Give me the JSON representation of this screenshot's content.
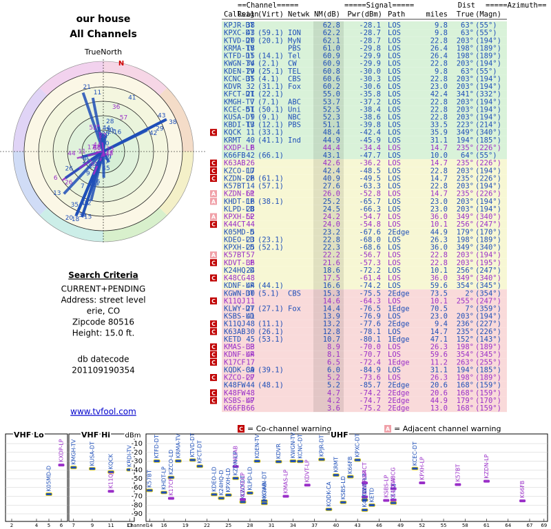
{
  "header": {
    "title": "our house",
    "subtitle": "All Channels"
  },
  "polar": {
    "north_label": "TrueNorth",
    "north": "N"
  },
  "criteria": {
    "heading": "Search Criteria",
    "lines": [
      "CURRENT+PENDING",
      "Address: street level",
      "erie, CO",
      "Zipcode 80516",
      "Height: 15.0 ft."
    ],
    "datecode_label": "db datecode",
    "datecode": "201109190354",
    "link": "www.tvfool.com"
  },
  "table": {
    "header1": [
      "==Channel=====",
      "=====Signal=====",
      "Dist",
      "=====Azimuth=="
    ],
    "header2": [
      "Callsign",
      "Real",
      "(Virt)",
      "Netwk",
      "NM(dB)",
      "Pwr(dBm)",
      "Path",
      "miles",
      "True",
      "(Magn)"
    ],
    "rows": [
      {
        "cs": "KPJR-DT",
        "r": "38",
        "nm": "62.8",
        "pw": "-28.1",
        "pa": "LOS",
        "d": "9.8",
        "t": "63°",
        "m": "(55°)",
        "c": "#1f4fb8",
        "bg": "#d9f2d9"
      },
      {
        "cs": "KPXC-DT",
        "r": "43",
        "v": "(59.1)",
        "n": "ION",
        "nm": "62.2",
        "pw": "-28.7",
        "pa": "LOS",
        "d": "9.8",
        "t": "63°",
        "m": "(55°)",
        "c": "#1f4fb8",
        "bg": "#d9f2d9"
      },
      {
        "cs": "KTVD-DT",
        "r": "20",
        "v": "(20.1)",
        "n": "MyN",
        "nm": "62.1",
        "pw": "-28.7",
        "pa": "LOS",
        "d": "22.8",
        "t": "203°",
        "m": "(194°)",
        "c": "#1f4fb8",
        "bg": "#d9f2d9"
      },
      {
        "cs": "KRMA-TV",
        "r": "18",
        "n": "PBS",
        "nm": "61.0",
        "pw": "-29.8",
        "pa": "LOS",
        "d": "26.4",
        "t": "198°",
        "m": "(189°)",
        "c": "#1f4fb8",
        "bg": "#d9f2d9"
      },
      {
        "cs": "KTFD-DT",
        "r": "15",
        "v": "(14.1)",
        "n": "Tel",
        "nm": "60.9",
        "pw": "-29.9",
        "pa": "LOS",
        "d": "26.4",
        "t": "198°",
        "m": "(189°)",
        "c": "#1f4fb8",
        "bg": "#d9f2d9"
      },
      {
        "cs": "KWGN-TV",
        "r": "34",
        "v": "(2.1)",
        "n": "CW",
        "nm": "60.9",
        "pw": "-29.9",
        "pa": "LOS",
        "d": "22.8",
        "t": "203°",
        "m": "(194°)",
        "c": "#1f4fb8",
        "bg": "#d9f2d9"
      },
      {
        "cs": "KDEN-TV",
        "r": "29",
        "v": "(25.1)",
        "n": "TEL",
        "nm": "60.8",
        "pw": "-30.0",
        "pa": "LOS",
        "d": "9.8",
        "t": "63°",
        "m": "(55°)",
        "c": "#1f4fb8",
        "bg": "#d9f2d9"
      },
      {
        "cs": "KCNC-DT",
        "r": "35",
        "v": "(4.1)",
        "n": "CBS",
        "nm": "60.6",
        "pw": "-30.3",
        "pa": "LOS",
        "d": "22.8",
        "t": "203°",
        "m": "(194°)",
        "c": "#1f4fb8",
        "bg": "#d9f2d9"
      },
      {
        "cs": "KDVR",
        "r": "32",
        "v": "(31.1)",
        "n": "Fox",
        "nm": "60.2",
        "pw": "-30.6",
        "pa": "LOS",
        "d": "23.0",
        "t": "203°",
        "m": "(194°)",
        "c": "#1f4fb8",
        "bg": "#d9f2d9"
      },
      {
        "cs": "KFCT-DT",
        "r": "21",
        "v": "(22.1)",
        "nm": "55.0",
        "pw": "-35.8",
        "pa": "LOS",
        "d": "42.4",
        "t": "341°",
        "m": "(332°)",
        "c": "#1f4fb8",
        "bg": "#d9f2d9"
      },
      {
        "cs": "KMGH-TV",
        "r": "7",
        "v": "(7.1)",
        "n": "ABC",
        "nm": "53.7",
        "pw": "-37.2",
        "pa": "LOS",
        "d": "22.8",
        "t": "203°",
        "m": "(194°)",
        "c": "#1f4fb8",
        "bg": "#d9f2d9"
      },
      {
        "cs": "KCEC-DT",
        "r": "51",
        "v": "(50.1)",
        "n": "Uni",
        "nm": "52.5",
        "pw": "-38.4",
        "pa": "LOS",
        "d": "22.8",
        "t": "203°",
        "m": "(194°)",
        "c": "#1f4fb8",
        "bg": "#d9f2d9"
      },
      {
        "cs": "KUSA-DT",
        "r": "9",
        "v": "(9.1)",
        "n": "NBC",
        "nm": "52.3",
        "pw": "-38.6",
        "pa": "LOS",
        "d": "22.8",
        "t": "203°",
        "m": "(194°)",
        "c": "#1f4fb8",
        "bg": "#d9f2d9"
      },
      {
        "cs": "KBDI-TV",
        "r": "13",
        "v": "(12.1)",
        "n": "PBS",
        "nm": "51.1",
        "pw": "-39.8",
        "pa": "LOS",
        "d": "33.5",
        "t": "223°",
        "m": "(214°)",
        "c": "#1f4fb8",
        "bg": "#d9f2d9"
      },
      {
        "w": "C",
        "cs": "KQCK",
        "r": "11",
        "v": "(33.1)",
        "nm": "48.4",
        "pw": "-42.4",
        "pa": "LOS",
        "d": "35.9",
        "t": "349°",
        "m": "(340°)",
        "c": "#1f4fb8",
        "bg": "#d9f2d9"
      },
      {
        "cs": "KRMT",
        "r": "40",
        "v": "(41.1)",
        "n": "Ind",
        "nm": "44.9",
        "pw": "-45.9",
        "pa": "LOS",
        "d": "31.1",
        "t": "194°",
        "m": "(185°)",
        "c": "#1f4fb8",
        "bg": "#d9f2d9"
      },
      {
        "cs": "KXDP-LP",
        "r": "6",
        "nm": "44.4",
        "pw": "-34.4",
        "pa": "LOS",
        "d": "14.7",
        "t": "235°",
        "m": "(226°)",
        "c": "#9a2fc8",
        "bg": "#d9f2d9"
      },
      {
        "cs": "K66FB",
        "r": "42",
        "v": "(66.1)",
        "nm": "43.1",
        "pw": "-47.7",
        "pa": "LOS",
        "d": "10.0",
        "t": "64°",
        "m": "(55°)",
        "c": "#1f4fb8",
        "bg": "#d9f2d9"
      },
      {
        "w": "C",
        "cs": "K63AB",
        "r": "26",
        "nm": "42.6",
        "pw": "-36.2",
        "pa": "LOS",
        "d": "14.7",
        "t": "235°",
        "m": "(226°)",
        "c": "#9a2fc8",
        "bg": "#f7f7d4"
      },
      {
        "w": "C",
        "cs": "KZCO-LD",
        "r": "17",
        "nm": "42.4",
        "pw": "-48.5",
        "pa": "LOS",
        "d": "22.8",
        "t": "203°",
        "m": "(194°)",
        "c": "#1f4fb8",
        "bg": "#f7f7d4"
      },
      {
        "w": "C",
        "cs": "KZDN-LP",
        "r": "26",
        "v": "(61.1)",
        "nm": "40.9",
        "pw": "-49.5",
        "pa": "LOS",
        "d": "14.7",
        "t": "235°",
        "m": "(226°)",
        "c": "#1f4fb8",
        "bg": "#f7f7d4"
      },
      {
        "cs": "K57BT",
        "r": "14",
        "v": "(57.1)",
        "nm": "27.6",
        "pw": "-63.3",
        "pa": "LOS",
        "d": "22.8",
        "t": "203°",
        "m": "(194°)",
        "c": "#1f4fb8",
        "bg": "#f7f7d4"
      },
      {
        "w": "A",
        "cs": "KZDN-LP",
        "r": "61",
        "nm": "26.0",
        "pw": "-52.8",
        "pa": "LOS",
        "d": "14.7",
        "t": "235°",
        "m": "(226°)",
        "c": "#9a2fc8",
        "bg": "#f7f7d4"
      },
      {
        "w": "A",
        "cs": "KHDT-LP",
        "r": "16",
        "v": "(38.1)",
        "nm": "25.2",
        "pw": "-65.7",
        "pa": "LOS",
        "d": "23.0",
        "t": "203°",
        "m": "(194°)",
        "c": "#1f4fb8",
        "bg": "#f7f7d4"
      },
      {
        "cs": "KLPD-LD",
        "r": "28",
        "nm": "24.5",
        "pw": "-66.3",
        "pa": "LOS",
        "d": "23.0",
        "t": "203°",
        "m": "(194°)",
        "c": "#1f4fb8",
        "bg": "#f7f7d4"
      },
      {
        "w": "A",
        "cs": "KPXH-LP",
        "r": "52",
        "nm": "24.2",
        "pw": "-54.7",
        "pa": "LOS",
        "d": "36.0",
        "t": "349°",
        "m": "(340°)",
        "c": "#9a2fc8",
        "bg": "#f7f7d4"
      },
      {
        "w": "C",
        "cs": "K44CT",
        "r": "44",
        "nm": "24.0",
        "pw": "-54.8",
        "pa": "LOS",
        "d": "10.1",
        "t": "256°",
        "m": "(247°)",
        "c": "#9a2fc8",
        "bg": "#f7f7d4"
      },
      {
        "cs": "K05MD-D",
        "r": "5",
        "nm": "23.2",
        "pw": "-67.6",
        "pa": "2Edge",
        "d": "44.9",
        "t": "179°",
        "m": "(170°)",
        "c": "#1f4fb8",
        "bg": "#f7f7d4"
      },
      {
        "cs": "KDEO-LD",
        "r": "23",
        "v": "(23.1)",
        "nm": "22.8",
        "pw": "-68.0",
        "pa": "LOS",
        "d": "26.3",
        "t": "198°",
        "m": "(189°)",
        "c": "#1f4fb8",
        "bg": "#f7f7d4"
      },
      {
        "cs": "KPXH-LD",
        "r": "25",
        "v": "(52.1)",
        "nm": "22.3",
        "pw": "-68.6",
        "pa": "LOS",
        "d": "36.0",
        "t": "349°",
        "m": "(340°)",
        "c": "#1f4fb8",
        "bg": "#f7f7d4"
      },
      {
        "w": "A",
        "cs": "K57BT",
        "r": "57",
        "nm": "22.2",
        "pw": "-56.7",
        "pa": "LOS",
        "d": "22.8",
        "t": "203°",
        "m": "(194°)",
        "c": "#9a2fc8",
        "bg": "#f7f7d4"
      },
      {
        "w": "C",
        "cs": "KDVT-LP",
        "r": "36",
        "nm": "21.6",
        "pw": "-57.3",
        "pa": "LOS",
        "d": "22.8",
        "t": "203°",
        "m": "(195°)",
        "c": "#9a2fc8",
        "bg": "#f7f7d4"
      },
      {
        "cs": "K24HQ-D",
        "r": "24",
        "nm": "18.6",
        "pw": "-72.2",
        "pa": "LOS",
        "d": "10.1",
        "t": "256°",
        "m": "(247°)",
        "c": "#1f4fb8",
        "bg": "#f7f7d4"
      },
      {
        "w": "C",
        "cs": "K48CG",
        "r": "48",
        "nm": "17.5",
        "pw": "-61.4",
        "pa": "LOS",
        "d": "36.0",
        "t": "349°",
        "m": "(340°)",
        "c": "#9a2fc8",
        "bg": "#f7f7d4"
      },
      {
        "cs": "KDNF-LP",
        "r": "44",
        "v": "(44.1)",
        "nm": "16.6",
        "pw": "-74.2",
        "pa": "LOS",
        "d": "59.6",
        "t": "354°",
        "m": "(345°)",
        "c": "#1f4fb8",
        "bg": "#f7f7d4"
      },
      {
        "cs": "KGWN-DT",
        "r": "30",
        "v": "(5.1)",
        "n": "CBS",
        "nm": "15.3",
        "pw": "-75.5",
        "pa": "2Edge",
        "d": "73.5",
        "t": "2°",
        "m": "(354°)",
        "c": "#1f4fb8",
        "bg": "#f9dada"
      },
      {
        "w": "C",
        "cs": "K11QJ",
        "r": "11",
        "nm": "14.6",
        "pw": "-64.3",
        "pa": "LOS",
        "d": "10.1",
        "t": "255°",
        "m": "(247°)",
        "c": "#9a2fc8",
        "bg": "#f9dada"
      },
      {
        "cs": "KLWY-DT",
        "r": "27",
        "v": "(27.1)",
        "n": "Fox",
        "nm": "14.4",
        "pw": "-76.5",
        "pa": "1Edge",
        "d": "70.5",
        "t": "7°",
        "m": "(359°)",
        "c": "#1f4fb8",
        "bg": "#f9dada"
      },
      {
        "cs": "KSBS-LD",
        "r": "41",
        "nm": "13.9",
        "pw": "-76.9",
        "pa": "LOS",
        "d": "23.0",
        "t": "203°",
        "m": "(194°)",
        "c": "#1f4fb8",
        "bg": "#f9dada"
      },
      {
        "w": "C",
        "cs": "K11QJ",
        "r": "48",
        "v": "(11.1)",
        "nm": "13.2",
        "pw": "-77.6",
        "pa": "2Edge",
        "d": "9.4",
        "t": "236°",
        "m": "(227°)",
        "c": "#1f4fb8",
        "bg": "#f9dada"
      },
      {
        "w": "C",
        "cs": "K63AB",
        "r": "30",
        "v": "(26.1)",
        "nm": "12.8",
        "pw": "-78.1",
        "pa": "LOS",
        "d": "14.7",
        "t": "235°",
        "m": "(226°)",
        "c": "#1f4fb8",
        "bg": "#f9dada"
      },
      {
        "cs": "KETD",
        "r": "45",
        "v": "(53.1)",
        "nm": "10.7",
        "pw": "-80.1",
        "pa": "1Edge",
        "d": "47.1",
        "t": "152°",
        "m": "(143°)",
        "c": "#1f4fb8",
        "bg": "#f9dada"
      },
      {
        "w": "C",
        "cs": "KMAS-LP",
        "r": "33",
        "nm": "8.9",
        "pw": "-70.0",
        "pa": "LOS",
        "d": "26.3",
        "t": "198°",
        "m": "(189°)",
        "c": "#9a2fc8",
        "bg": "#f9dada"
      },
      {
        "w": "C",
        "cs": "KDNF-LP",
        "r": "44",
        "nm": "8.1",
        "pw": "-70.7",
        "pa": "LOS",
        "d": "59.6",
        "t": "354°",
        "m": "(345°)",
        "c": "#9a2fc8",
        "bg": "#f9dada"
      },
      {
        "w": "C",
        "cs": "K17CF",
        "r": "17",
        "nm": "6.5",
        "pw": "-72.4",
        "pa": "1Edge",
        "d": "11.2",
        "t": "263°",
        "m": "(255°)",
        "c": "#9a2fc8",
        "bg": "#f9dada"
      },
      {
        "cs": "KQDK-CA",
        "r": "39",
        "v": "(39.1)",
        "nm": "6.0",
        "pw": "-84.9",
        "pa": "LOS",
        "d": "31.1",
        "t": "194°",
        "m": "(185°)",
        "c": "#1f4fb8",
        "bg": "#f9dada"
      },
      {
        "w": "C",
        "cs": "KZCO-LP",
        "r": "27",
        "nm": "5.2",
        "pw": "-73.6",
        "pa": "LOS",
        "d": "26.3",
        "t": "198°",
        "m": "(189°)",
        "c": "#9a2fc8",
        "bg": "#f9dada"
      },
      {
        "cs": "K48FW",
        "r": "44",
        "v": "(48.1)",
        "nm": "5.2",
        "pw": "-85.7",
        "pa": "2Edge",
        "d": "20.6",
        "t": "168°",
        "m": "(159°)",
        "c": "#1f4fb8",
        "bg": "#f9dada"
      },
      {
        "w": "C",
        "cs": "K48FW",
        "r": "48",
        "nm": "4.7",
        "pw": "-74.2",
        "pa": "2Edge",
        "d": "20.6",
        "t": "168°",
        "m": "(159°)",
        "c": "#9a2fc8",
        "bg": "#f9dada"
      },
      {
        "w": "C",
        "cs": "KSBS-LP",
        "r": "47",
        "nm": "4.2",
        "pw": "-74.7",
        "pa": "2Edge",
        "d": "44.9",
        "t": "179°",
        "m": "(170°)",
        "c": "#9a2fc8",
        "bg": "#f9dada"
      },
      {
        "cs": "K66FB",
        "r": "66",
        "nm": "3.6",
        "pw": "-75.2",
        "pa": "2Edge",
        "d": "13.0",
        "t": "168°",
        "m": "(159°)",
        "c": "#9a2fc8",
        "bg": "#f9dada"
      }
    ]
  },
  "legend": [
    {
      "mark": "C",
      "text": "= Co-channel warning",
      "color": "#c00000"
    },
    {
      "mark": "A",
      "text": "= Adjacent channel warning",
      "color": "#f0a0a8"
    }
  ],
  "spectrum": {
    "ylabel": "dBm",
    "xlabel": "Channel",
    "ylim": [
      -98,
      -2
    ],
    "yticks": [
      -10,
      -20,
      -30,
      -40,
      -50,
      -60,
      -70,
      -80,
      -90
    ],
    "panels": [
      {
        "title": "VHF Lo",
        "xlim": [
          1.5,
          6.5
        ],
        "xticks": [
          2,
          4,
          5,
          6
        ]
      },
      {
        "title": "VHF Hi",
        "xlim": [
          6.5,
          13.5
        ],
        "xticks": [
          7,
          9,
          11,
          13
        ]
      },
      {
        "title": "UHF",
        "xlim": [
          13.5,
          69.5
        ],
        "xticks": [
          14,
          16,
          19,
          22,
          25,
          28,
          31,
          34,
          37,
          40,
          43,
          46,
          49,
          52,
          55,
          58,
          61,
          64,
          67,
          69
        ]
      }
    ]
  }
}
